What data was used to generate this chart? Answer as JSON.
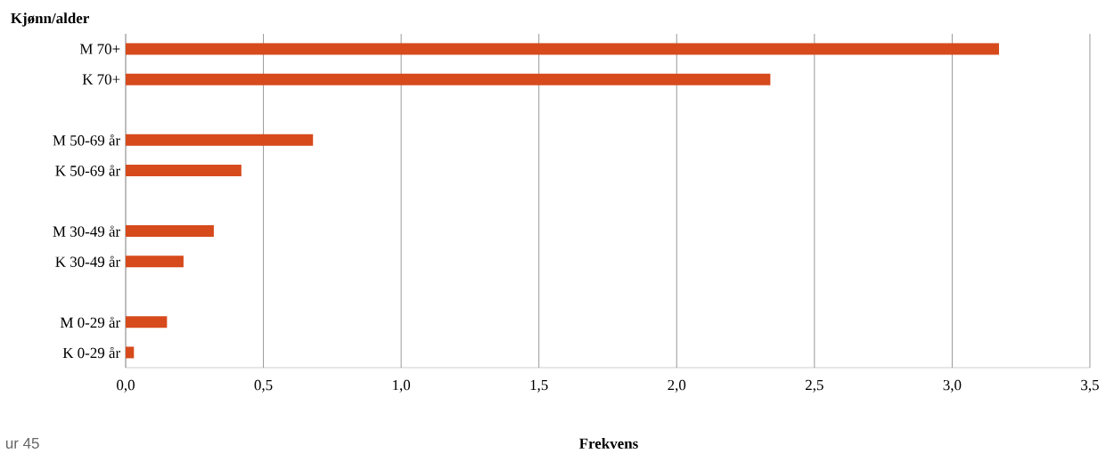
{
  "chart_data": {
    "type": "bar",
    "orientation": "horizontal",
    "title": "Kjønn/alder",
    "xlabel": "Frekvens",
    "categories": [
      "M 70+",
      "K 70+",
      null,
      "M 50-69 år",
      "K 50-69 år",
      null,
      "M 30-49 år",
      "K 30-49 år",
      null,
      "M 0-29 år",
      "K 0-29 år"
    ],
    "values": [
      3.17,
      2.34,
      null,
      0.68,
      0.42,
      null,
      0.32,
      0.21,
      null,
      0.15,
      0.03
    ],
    "color": "#d64a1c",
    "xlim": [
      0,
      3.5
    ],
    "xticks": [
      {
        "value": 0,
        "label": "0,0"
      },
      {
        "value": 0.5,
        "label": "0,5"
      },
      {
        "value": 1,
        "label": "1,0"
      },
      {
        "value": 1.5,
        "label": "1,5"
      },
      {
        "value": 2,
        "label": "2,0"
      },
      {
        "value": 2.5,
        "label": "2,5"
      },
      {
        "value": 3,
        "label": "3,0"
      },
      {
        "value": 3.5,
        "label": "3,5"
      }
    ],
    "grid": "x",
    "annotations": [
      "ur 45"
    ]
  }
}
